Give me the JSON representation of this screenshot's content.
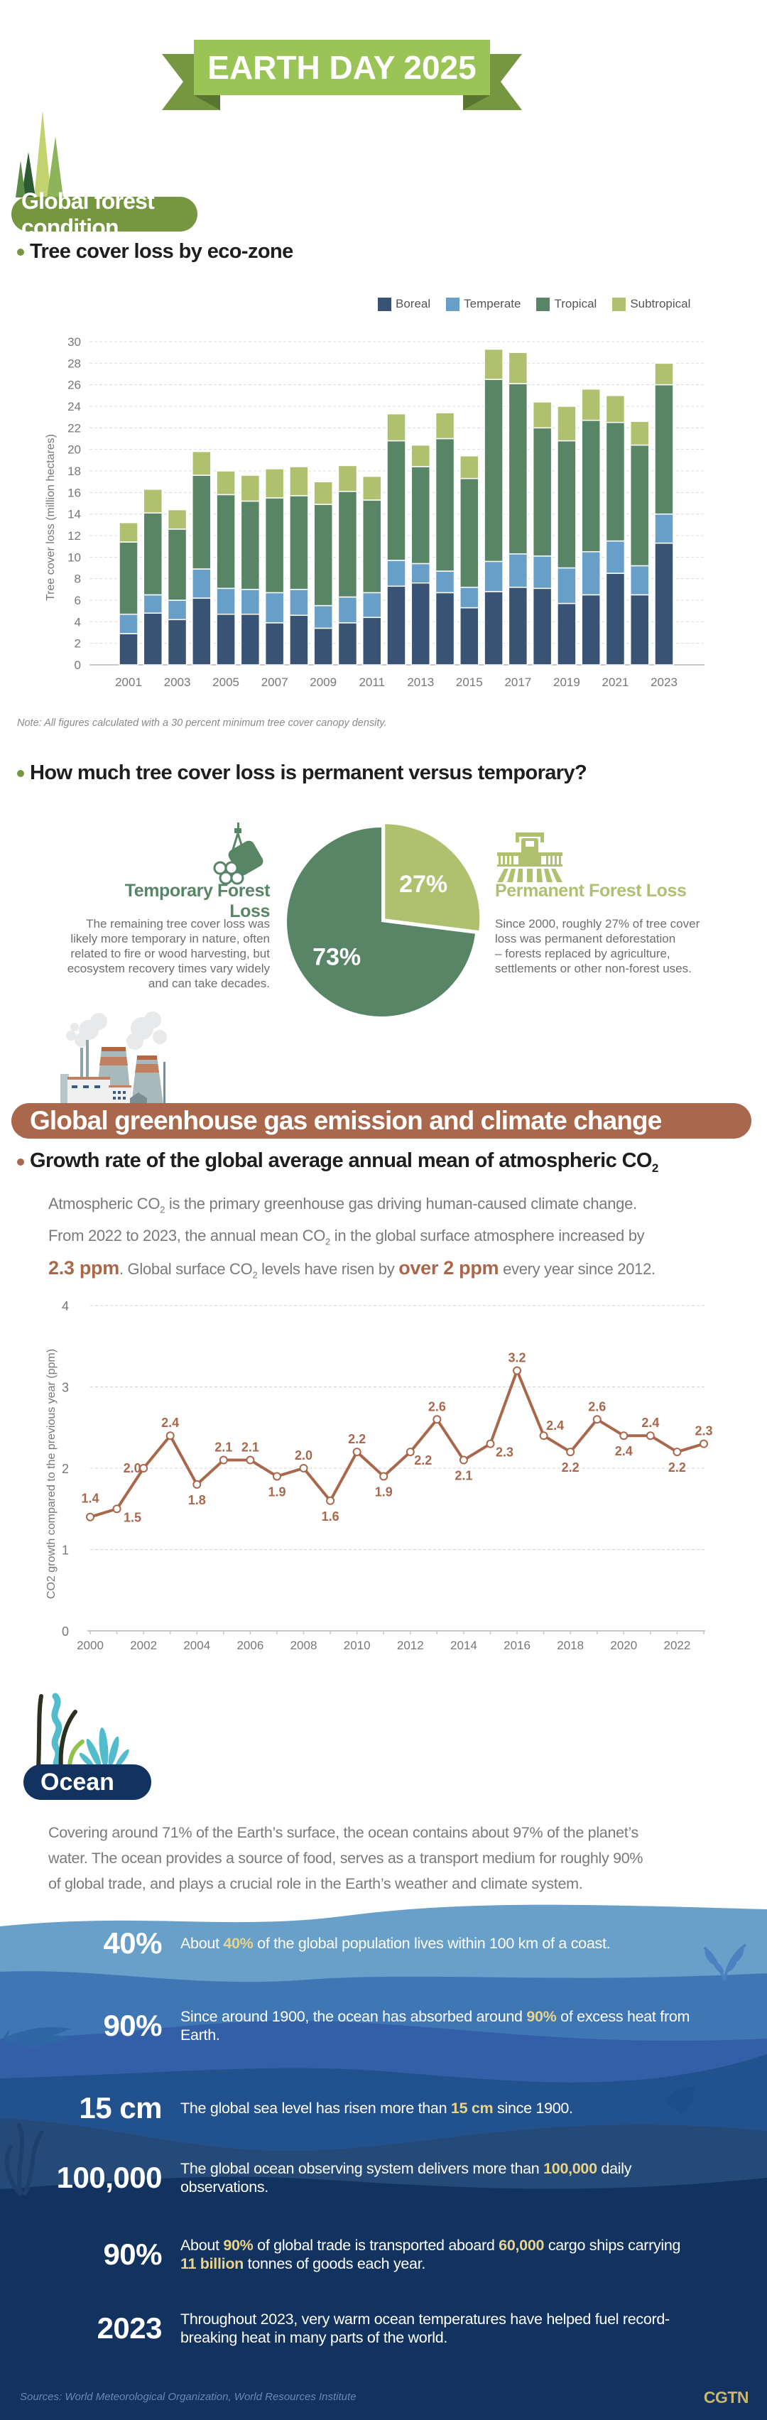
{
  "banner": {
    "title": "EARTH DAY 2025"
  },
  "forest": {
    "section_title": "Global forest condition",
    "chart_subtitle": "Tree cover loss by eco-zone",
    "note": "Note: All figures calculated with a 30 percent minimum tree cover canopy density.",
    "pie_question": "How much tree cover loss is permanent versus temporary?",
    "temporary": {
      "title": "Temporary Forest Loss",
      "lines": [
        "The remaining tree cover loss was",
        "likely more temporary in nature, often",
        "related to fire or wood harvesting, but",
        "ecosystem recovery times vary widely",
        "and can take decades."
      ]
    },
    "permanent": {
      "title": "Permanent Forest Loss",
      "lines": [
        "Since 2000, roughly 27% of tree cover",
        "loss was permanent deforestation",
        "– forests replaced by agriculture,",
        "settlements or other non-forest uses."
      ]
    }
  },
  "ghg": {
    "section_title": "Global greenhouse gas emission and climate change",
    "chart_subtitle_main": "Growth rate of the global average annual mean of atmospheric CO",
    "chart_subtitle_sub": "2",
    "para": {
      "s1a": "Atmospheric CO",
      "s1sub": "2",
      "s1b": " is the primary greenhouse gas driving human-caused climate change.",
      "s2a": "From 2022 to 2023, the annual mean CO",
      "s2sub": "2",
      "s2b": " in the global surface atmosphere increased by",
      "hl1": "2.3 ppm",
      "s3a": ". Global surface CO",
      "s3sub": "2",
      "s3b": " levels have risen by ",
      "hl2": "over 2 ppm",
      "s3c": " every year since 2012."
    }
  },
  "ocean": {
    "section_title": "Ocean",
    "intro_lines": [
      "Covering around 71% of the Earth’s surface, the ocean contains about 97% of the planet’s",
      "water. The ocean provides a source of food, serves as a transport medium for roughly 90%",
      "of global trade, and plays a crucial role in the Earth’s weather and climate system."
    ],
    "facts": [
      {
        "big": "40%",
        "parts": [
          [
            "About ",
            false
          ],
          [
            "40%",
            true
          ],
          [
            " of the global population lives within 100 km of a coast.",
            false
          ]
        ]
      },
      {
        "big": "90%",
        "parts": [
          [
            "Since around 1900, the ocean has absorbed around ",
            false
          ],
          [
            "90%",
            true
          ],
          [
            " of excess heat from Earth.",
            false
          ]
        ]
      },
      {
        "big": "15 cm",
        "parts": [
          [
            "The global sea level has risen more than ",
            false
          ],
          [
            "15 cm",
            true
          ],
          [
            " since 1900.",
            false
          ]
        ]
      },
      {
        "big": "100,000",
        "parts": [
          [
            "The global ocean observing system delivers more than ",
            false
          ],
          [
            "100,000",
            true
          ],
          [
            " daily observations.",
            false
          ]
        ]
      },
      {
        "big": "90%",
        "parts": [
          [
            "About ",
            false
          ],
          [
            "90%",
            true
          ],
          [
            " of global trade is transported aboard ",
            false
          ],
          [
            "60,000",
            true
          ],
          [
            " cargo ships carrying ",
            false
          ],
          [
            "11 billion",
            true
          ],
          [
            " tonnes of goods each year.",
            false
          ]
        ]
      },
      {
        "big": "2023",
        "parts": [
          [
            "Throughout 2023, very warm ocean temperatures have helped fuel record-breaking heat in many parts of the world.",
            false
          ]
        ]
      }
    ]
  },
  "footer": {
    "sources": "Sources: World Meteorological Organization, World Resources Institute",
    "brand": "CGTN"
  },
  "colors": {
    "boreal": "#385373",
    "temperate": "#679fc9",
    "tropical": "#578566",
    "subtropical": "#afc16f",
    "forest_green": "#76963f",
    "ghg_brown": "#a9684c",
    "ocean_navy": "#12325f",
    "highlight_yellow": "#e8d38a"
  },
  "chart_data": [
    {
      "type": "bar",
      "stacked": true,
      "title": "Tree cover loss by eco-zone",
      "xlabel": "",
      "ylabel": "Tree cover loss (million hectares)",
      "ylim": [
        0,
        30
      ],
      "yticks": [
        0,
        2,
        4,
        6,
        8,
        10,
        12,
        14,
        16,
        18,
        20,
        22,
        24,
        26,
        28,
        30
      ],
      "xtick_labels": [
        "2001",
        "2003",
        "2005",
        "2007",
        "2009",
        "2011",
        "2013",
        "2015",
        "2017",
        "2019",
        "2021",
        "2023"
      ],
      "grid": true,
      "legend": "top-right",
      "categories": [
        "2001",
        "2002",
        "2003",
        "2004",
        "2005",
        "2006",
        "2007",
        "2008",
        "2009",
        "2010",
        "2011",
        "2012",
        "2013",
        "2014",
        "2015",
        "2016",
        "2017",
        "2018",
        "2019",
        "2020",
        "2021",
        "2022",
        "2023"
      ],
      "series": [
        {
          "name": "Boreal",
          "values": [
            2.9,
            4.8,
            4.2,
            6.2,
            4.7,
            4.7,
            3.9,
            4.6,
            3.4,
            3.9,
            4.4,
            7.3,
            7.6,
            6.7,
            5.3,
            6.8,
            7.2,
            7.1,
            5.7,
            6.5,
            8.5,
            6.5,
            11.3
          ]
        },
        {
          "name": "Temperate",
          "values": [
            1.8,
            1.7,
            1.8,
            2.7,
            2.4,
            2.3,
            2.8,
            2.4,
            2.1,
            2.4,
            2.3,
            2.4,
            1.8,
            2.0,
            1.9,
            2.8,
            3.1,
            3.0,
            3.3,
            4.0,
            3.0,
            2.7,
            2.7
          ]
        },
        {
          "name": "Tropical",
          "values": [
            6.7,
            7.6,
            6.6,
            8.7,
            8.7,
            8.2,
            8.8,
            8.7,
            9.4,
            9.8,
            8.6,
            11.1,
            9.0,
            12.3,
            10.1,
            16.9,
            15.8,
            11.9,
            11.8,
            12.2,
            11.0,
            11.2,
            12.0
          ]
        },
        {
          "name": "Subtropical",
          "values": [
            1.8,
            2.2,
            1.8,
            2.2,
            2.2,
            2.4,
            2.7,
            2.7,
            2.1,
            2.4,
            2.2,
            2.5,
            2.0,
            2.4,
            2.1,
            2.8,
            2.9,
            2.4,
            3.2,
            2.9,
            2.5,
            2.2,
            2.0
          ]
        }
      ]
    },
    {
      "type": "pie",
      "title": "How much tree cover loss is permanent versus temporary?",
      "labels": [
        "Permanent Forest Loss",
        "Temporary Forest Loss"
      ],
      "values": [
        27,
        73
      ],
      "value_labels": [
        "27%",
        "73%"
      ]
    },
    {
      "type": "line",
      "title": "Growth rate of the global average annual mean of atmospheric CO2",
      "xlabel": "",
      "ylabel": "CO2 growth compared to the previous year (ppm)",
      "ylim": [
        0,
        4
      ],
      "yticks": [
        0,
        1,
        2,
        3,
        4
      ],
      "xtick_labels": [
        "2000",
        "2002",
        "2004",
        "2006",
        "2008",
        "2010",
        "2012",
        "2014",
        "2016",
        "2018",
        "2020",
        "2022"
      ],
      "grid": true,
      "x": [
        2000,
        2001,
        2002,
        2003,
        2004,
        2005,
        2006,
        2007,
        2008,
        2009,
        2010,
        2011,
        2012,
        2013,
        2014,
        2015,
        2016,
        2017,
        2018,
        2019,
        2020,
        2021,
        2022,
        2023
      ],
      "series": [
        {
          "name": "CO2 growth",
          "values": [
            1.4,
            1.5,
            2.0,
            2.4,
            1.8,
            2.1,
            2.1,
            1.9,
            2.0,
            1.6,
            2.2,
            1.9,
            2.2,
            2.6,
            2.1,
            2.3,
            3.2,
            2.4,
            2.2,
            2.6,
            2.4,
            2.4,
            2.2,
            2.3
          ],
          "value_labels": [
            "1.4",
            "1.5",
            "2.0",
            "2.4",
            "1.8",
            "2.1",
            "2.1",
            "1.9",
            "2.0",
            "1.6",
            "2.2",
            "1.9",
            "2.2",
            "2.6",
            "2.1",
            "2.3",
            "3.2",
            "2.4",
            "2.2",
            "2.6",
            "2.4",
            "2.4",
            "2.2",
            "2.3"
          ]
        }
      ]
    }
  ]
}
